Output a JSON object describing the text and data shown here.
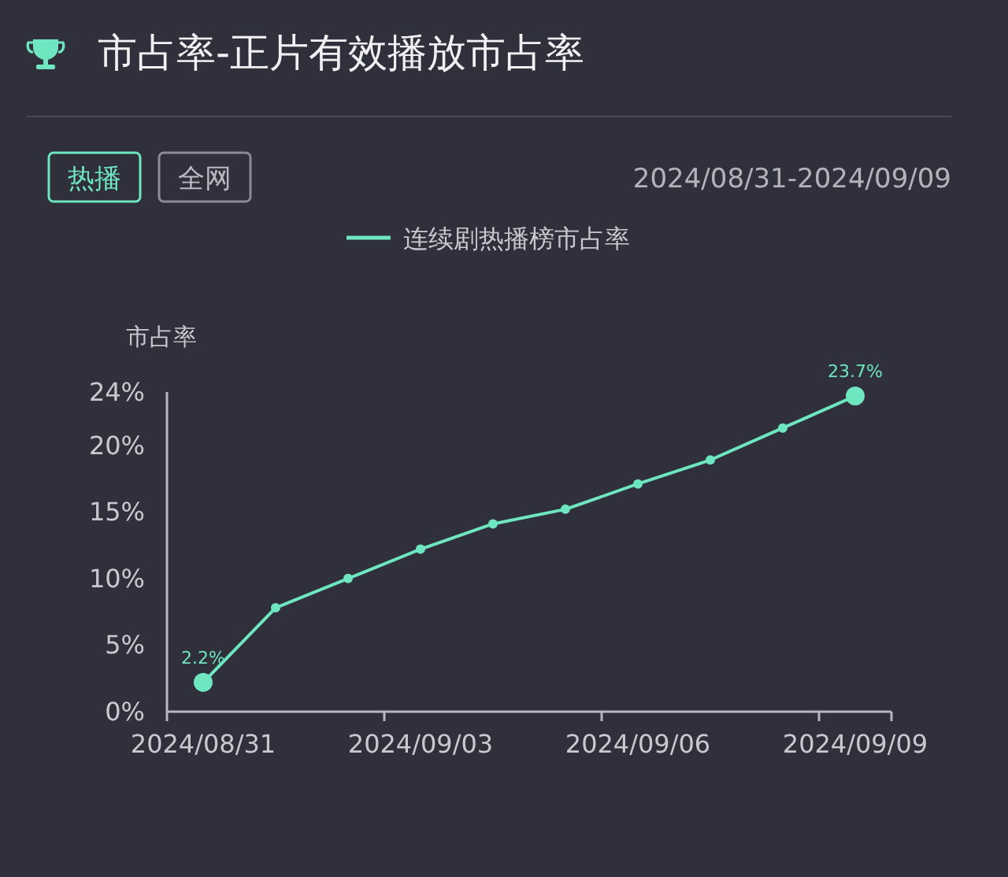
{
  "chart_data": {
    "type": "line",
    "title": "市占率-正片有效播放市占率",
    "subtitle": "2024/08/31-2024/09/09",
    "annotations": [
      "热播",
      "全网"
    ],
    "ylabel": "市占率",
    "categories": [
      "2024/08/31",
      null,
      null,
      "2024/09/03",
      null,
      null,
      "2024/09/06",
      null,
      null,
      "2024/09/09"
    ],
    "series": [
      {
        "name": "连续剧热播榜市占率",
        "color": "#6ee6bf",
        "values": [
          2.2,
          7.8,
          10.0,
          12.2,
          14.1,
          15.2,
          17.1,
          18.9,
          21.3,
          23.7
        ],
        "value_labels": [
          "2.2%",
          null,
          null,
          null,
          null,
          null,
          null,
          null,
          null,
          "23.7%"
        ]
      }
    ],
    "ylim": [
      0,
      24
    ],
    "yticks": [
      {
        "value": 0,
        "label": "0%"
      },
      {
        "value": 5,
        "label": "5%"
      },
      {
        "value": 10,
        "label": "10%"
      },
      {
        "value": 15,
        "label": "15%"
      },
      {
        "value": 20,
        "label": "20%"
      },
      {
        "value": 24,
        "label": "24%"
      }
    ],
    "grid": false,
    "legend": "top",
    "marker": "circle",
    "line_style": "solid"
  }
}
